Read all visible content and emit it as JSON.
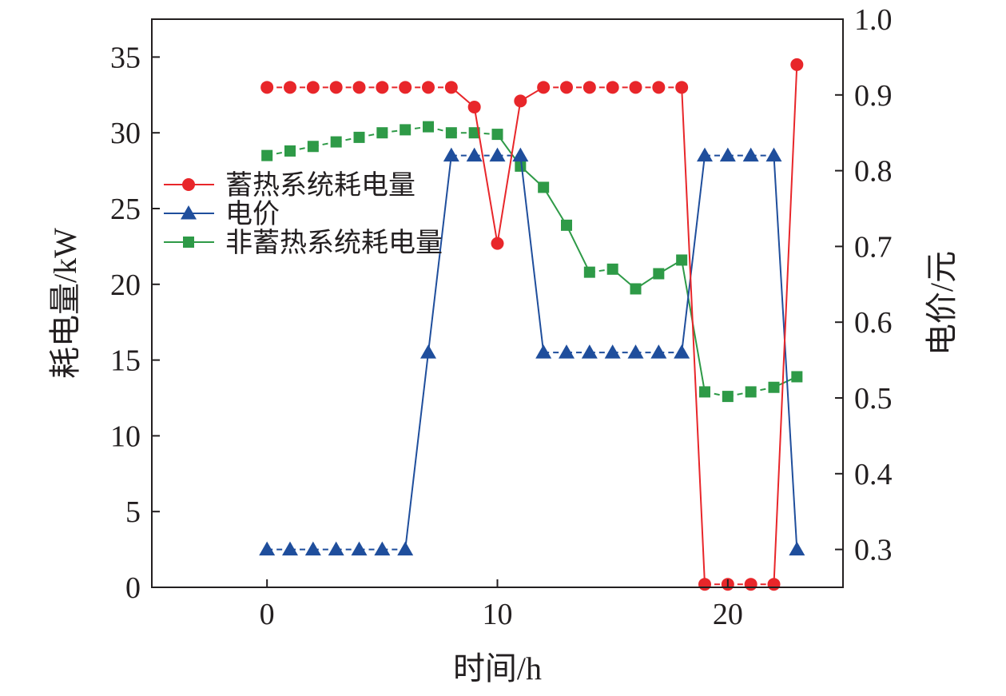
{
  "chart_data": {
    "type": "line",
    "xlabel": "时间/h",
    "ylabel_left": "耗电量/kW",
    "ylabel_right": "电价/元",
    "x_range": [
      -5,
      25
    ],
    "y_left_range": [
      0,
      37.5
    ],
    "y_right_range": [
      0.25,
      1.0
    ],
    "x_ticks": [
      0,
      10,
      20
    ],
    "y_left_ticks": [
      0,
      5,
      10,
      15,
      20,
      25,
      30,
      35
    ],
    "y_right_ticks": [
      0.3,
      0.4,
      0.5,
      0.6,
      0.7,
      0.8,
      0.9,
      1.0
    ],
    "grid": false,
    "legend_position": "left-middle",
    "x": [
      0,
      1,
      2,
      3,
      4,
      5,
      6,
      7,
      8,
      9,
      10,
      11,
      12,
      13,
      14,
      15,
      16,
      17,
      18,
      19,
      20,
      21,
      22,
      23
    ],
    "series": [
      {
        "name": "蓄热系统耗电量",
        "axis": "left",
        "marker": "circle",
        "color": "#e8262a",
        "values": [
          33,
          33,
          33,
          33,
          33,
          33,
          33,
          33,
          33,
          31.7,
          22.7,
          32.1,
          33,
          33,
          33,
          33,
          33,
          33,
          33,
          0.2,
          0.2,
          0.2,
          0.2,
          34.5
        ]
      },
      {
        "name": "电价",
        "axis": "right",
        "marker": "triangle",
        "color": "#1f4e9c",
        "values": [
          0.3,
          0.3,
          0.3,
          0.3,
          0.3,
          0.3,
          0.3,
          0.56,
          0.82,
          0.82,
          0.82,
          0.82,
          0.56,
          0.56,
          0.56,
          0.56,
          0.56,
          0.56,
          0.56,
          0.82,
          0.82,
          0.82,
          0.82,
          0.3
        ]
      },
      {
        "name": "非蓄热系统耗电量",
        "axis": "left",
        "marker": "square",
        "color": "#2e9a47",
        "values": [
          28.5,
          28.8,
          29.1,
          29.4,
          29.7,
          30,
          30.2,
          30.4,
          30,
          30,
          29.9,
          27.8,
          26.4,
          23.9,
          20.8,
          21,
          19.7,
          20.7,
          21.6,
          12.9,
          12.6,
          12.9,
          13.2,
          13.9
        ]
      }
    ]
  }
}
